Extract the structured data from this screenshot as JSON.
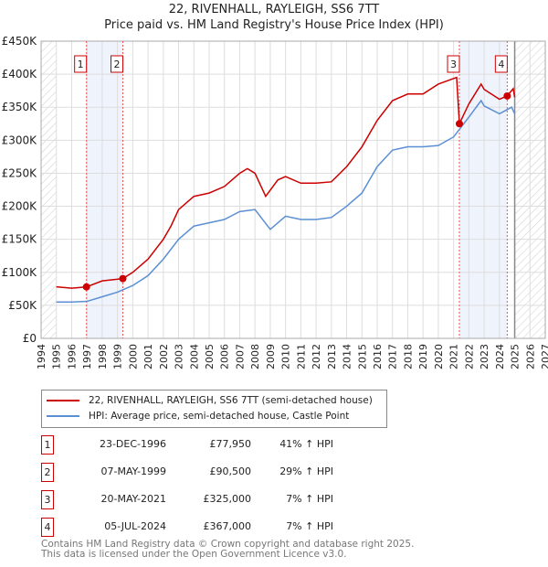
{
  "chart_data": {
    "type": "line",
    "title": "22, RIVENHALL, RAYLEIGH, SS6 7TT",
    "subtitle": "Price paid vs. HM Land Registry's House Price Index (HPI)",
    "xlim": [
      1994,
      2027
    ],
    "ylim": [
      0,
      450000
    ],
    "x_ticks": [
      "1994",
      "1995",
      "1996",
      "1997",
      "1998",
      "1999",
      "2000",
      "2001",
      "2002",
      "2003",
      "2004",
      "2005",
      "2006",
      "2007",
      "2008",
      "2009",
      "2010",
      "2011",
      "2012",
      "2013",
      "2014",
      "2015",
      "2016",
      "2017",
      "2018",
      "2019",
      "2020",
      "2021",
      "2022",
      "2023",
      "2024",
      "2025",
      "2026",
      "2027"
    ],
    "y_ticks": [
      {
        "v": 0,
        "label": "£0"
      },
      {
        "v": 50000,
        "label": "£50K"
      },
      {
        "v": 100000,
        "label": "£100K"
      },
      {
        "v": 150000,
        "label": "£150K"
      },
      {
        "v": 200000,
        "label": "£200K"
      },
      {
        "v": 250000,
        "label": "£250K"
      },
      {
        "v": 300000,
        "label": "£300K"
      },
      {
        "v": 350000,
        "label": "£350K"
      },
      {
        "v": 400000,
        "label": "£400K"
      },
      {
        "v": 450000,
        "label": "£450K"
      }
    ],
    "grid": true,
    "series": [
      {
        "name": "22, RIVENHALL, RAYLEIGH, SS6 7TT (semi-detached house)",
        "color": "#cc0000",
        "x": [
          1995,
          1996,
          1996.97,
          1998,
          1999.35,
          2000,
          2001,
          2002,
          2002.5,
          2003,
          2004,
          2005,
          2006,
          2007,
          2007.5,
          2008,
          2008.7,
          2009.5,
          2010,
          2011,
          2012,
          2013,
          2014,
          2015,
          2016,
          2017,
          2018,
          2019,
          2020,
          2021.2,
          2021.38,
          2022,
          2022.8,
          2023,
          2024,
          2024.5,
          2024.9,
          2025
        ],
        "y": [
          78000,
          76000,
          77950,
          87000,
          90500,
          100000,
          120000,
          150000,
          170000,
          195000,
          215000,
          220000,
          230000,
          250000,
          257000,
          250000,
          215000,
          240000,
          245000,
          235000,
          235000,
          237000,
          260000,
          290000,
          330000,
          360000,
          370000,
          370000,
          385000,
          395000,
          325000,
          355000,
          385000,
          377000,
          362000,
          367000,
          378000,
          365000
        ]
      },
      {
        "name": "HPI: Average price, semi-detached house, Castle Point",
        "color": "#5b8fd4",
        "x": [
          1995,
          1996,
          1997,
          1998,
          1999,
          2000,
          2001,
          2002,
          2003,
          2004,
          2005,
          2006,
          2007,
          2008,
          2009,
          2010,
          2011,
          2012,
          2013,
          2014,
          2015,
          2016,
          2017,
          2018,
          2019,
          2020,
          2021,
          2022,
          2022.8,
          2023,
          2024,
          2024.8,
          2025
        ],
        "y": [
          55000,
          55000,
          56000,
          63000,
          70000,
          80000,
          95000,
          120000,
          150000,
          170000,
          175000,
          180000,
          192000,
          195000,
          165000,
          185000,
          180000,
          180000,
          183000,
          200000,
          220000,
          260000,
          285000,
          290000,
          290000,
          292000,
          305000,
          335000,
          360000,
          352000,
          340000,
          350000,
          340000
        ]
      }
    ],
    "sales": [
      {
        "label": "1",
        "x": 1996.97,
        "y": 77950
      },
      {
        "label": "2",
        "x": 1999.35,
        "y": 90500
      },
      {
        "label": "3",
        "x": 2021.38,
        "y": 325000
      },
      {
        "label": "4",
        "x": 2024.51,
        "y": 367000
      }
    ],
    "shaded_ranges": [
      [
        1996.97,
        1999.35
      ],
      [
        2021.38,
        2024.51
      ]
    ],
    "hatched_ranges": [
      [
        1994,
        1995
      ],
      [
        2025,
        2027
      ]
    ]
  },
  "legend": [
    "22, RIVENHALL, RAYLEIGH, SS6 7TT (semi-detached house)",
    "HPI: Average price, semi-detached house, Castle Point"
  ],
  "table": [
    {
      "n": "1",
      "date": "23-DEC-1996",
      "price": "£77,950",
      "hpi": "41% ↑ HPI"
    },
    {
      "n": "2",
      "date": "07-MAY-1999",
      "price": "£90,500",
      "hpi": "29% ↑ HPI"
    },
    {
      "n": "3",
      "date": "20-MAY-2021",
      "price": "£325,000",
      "hpi": "7% ↑ HPI"
    },
    {
      "n": "4",
      "date": "05-JUL-2024",
      "price": "£367,000",
      "hpi": "7% ↑ HPI"
    }
  ],
  "footer": [
    "Contains HM Land Registry data © Crown copyright and database right 2025.",
    "This data is licensed under the Open Government Licence v3.0."
  ]
}
